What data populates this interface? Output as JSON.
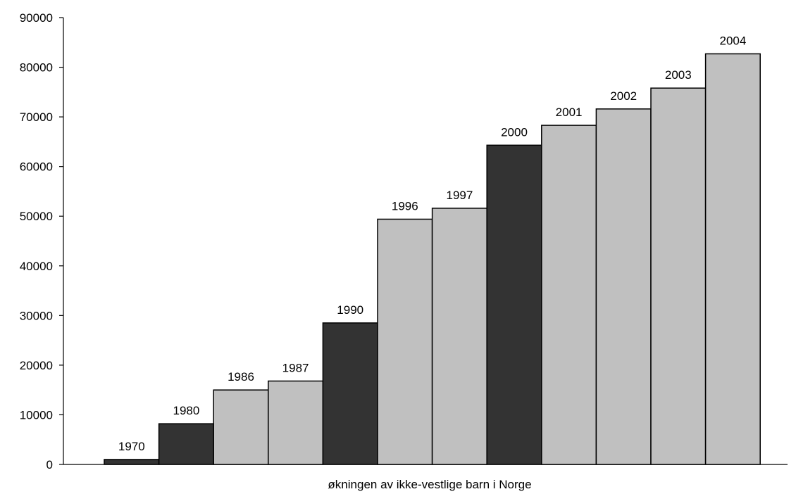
{
  "chart_data": {
    "type": "bar",
    "title": "",
    "xlabel": "økningen av ikke-vestlige barn i Norge",
    "ylabel": "",
    "ylim": [
      0,
      90000
    ],
    "yticks": [
      "0",
      "10000",
      "20000",
      "30000",
      "40000",
      "50000",
      "60000",
      "70000",
      "80000",
      "90000"
    ],
    "grid": false,
    "legend": "none",
    "categories": [
      "1970",
      "1980",
      "1986",
      "1987",
      "1990",
      "1996",
      "1997",
      "2000",
      "2001",
      "2002",
      "2003",
      "2004"
    ],
    "values": [
      1000,
      8200,
      15000,
      16800,
      28500,
      49400,
      51600,
      64300,
      68300,
      71600,
      75800,
      82700
    ],
    "highlighted": [
      true,
      true,
      false,
      false,
      true,
      false,
      false,
      true,
      false,
      false,
      false,
      false
    ],
    "colors": {
      "highlight": "#333333",
      "normal": "#c0c0c0",
      "outline": "#000000"
    }
  }
}
